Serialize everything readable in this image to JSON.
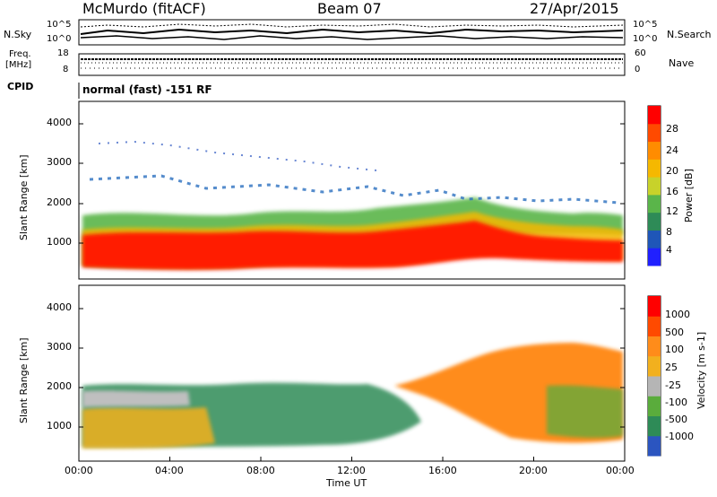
{
  "header": {
    "title": "McMurdo (fitACF)",
    "beam": "Beam 07",
    "date": "27/Apr/2015"
  },
  "top_panel": {
    "left_label": "N.Sky",
    "right_label": "N.Search",
    "left_ticks": [
      "10^5",
      "10^0"
    ],
    "right_ticks": [
      "10^5",
      "10^0"
    ]
  },
  "freq_panel": {
    "left_label_1": "Freq.",
    "left_label_2": "[MHz]",
    "left_ticks": [
      "18",
      "8"
    ],
    "right_label": "Nave",
    "right_ticks": [
      "60",
      "0"
    ]
  },
  "cpid": {
    "label": "CPID",
    "value": "normal (fast) -151 RF"
  },
  "chart_data": [
    {
      "type": "heatmap",
      "name": "power",
      "ylabel": "Slant Range [km]",
      "ylim": [
        250,
        4600
      ],
      "yticks": [
        "1000",
        "2000",
        "3000",
        "4000"
      ],
      "xlim": [
        0,
        24
      ],
      "colorbar": {
        "label": "Power [dB]",
        "ticks": [
          "28",
          "24",
          "20",
          "16",
          "12",
          "8",
          "4"
        ],
        "colors": [
          "#2020ff",
          "#1f56b8",
          "#2e8b57",
          "#5ab54a",
          "#c8d22a",
          "#f5b800",
          "#ff8c00",
          "#ff4a00",
          "#ff0000"
        ]
      }
    },
    {
      "type": "heatmap",
      "name": "velocity",
      "ylabel": "Slant Range [km]",
      "ylim": [
        250,
        4600
      ],
      "yticks": [
        "1000",
        "2000",
        "3000",
        "4000"
      ],
      "xlim": [
        0,
        24
      ],
      "xticks": [
        "00:00",
        "04:00",
        "08:00",
        "12:00",
        "16:00",
        "20:00",
        "00:00"
      ],
      "xlabel": "Time UT",
      "colorbar": {
        "label": "Velocity [m s-1]",
        "ticks": [
          "1000",
          "500",
          "100",
          "25",
          "-25",
          "-100",
          "-500",
          "-1000"
        ],
        "colors": [
          "#2b55c0",
          "#2e8b57",
          "#5aac3c",
          "#b5b5b5",
          "#f2b01e",
          "#ff8c1a",
          "#ff4a00",
          "#ff0000"
        ]
      }
    }
  ]
}
